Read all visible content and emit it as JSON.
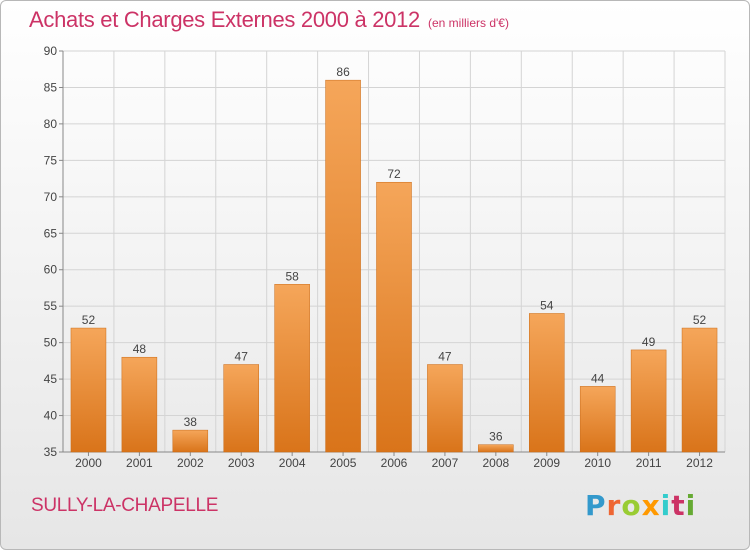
{
  "chart_data": {
    "type": "bar",
    "title": "Achats et Charges Externes 2000 à 2012",
    "subtitle": "(en milliers d'€)",
    "categories": [
      "2000",
      "2001",
      "2002",
      "2003",
      "2004",
      "2005",
      "2006",
      "2007",
      "2008",
      "2009",
      "2010",
      "2011",
      "2012"
    ],
    "values": [
      52,
      48,
      38,
      47,
      58,
      86,
      72,
      47,
      36,
      54,
      44,
      49,
      52
    ],
    "ylim": [
      35,
      90
    ],
    "yticks": [
      35,
      40,
      45,
      50,
      55,
      60,
      65,
      70,
      75,
      80,
      85,
      90
    ],
    "grid": true,
    "bar_color_top": "#f5a65a",
    "bar_color_bottom": "#d9741a"
  },
  "footer": {
    "commune": "SULLY-LA-CHAPELLE",
    "brand": "Proxiti",
    "brand_colors": [
      "#3399cc",
      "#ee6633",
      "#99cc33",
      "#ff9900",
      "#33cccc",
      "#cc3366",
      "#66aa33"
    ]
  }
}
